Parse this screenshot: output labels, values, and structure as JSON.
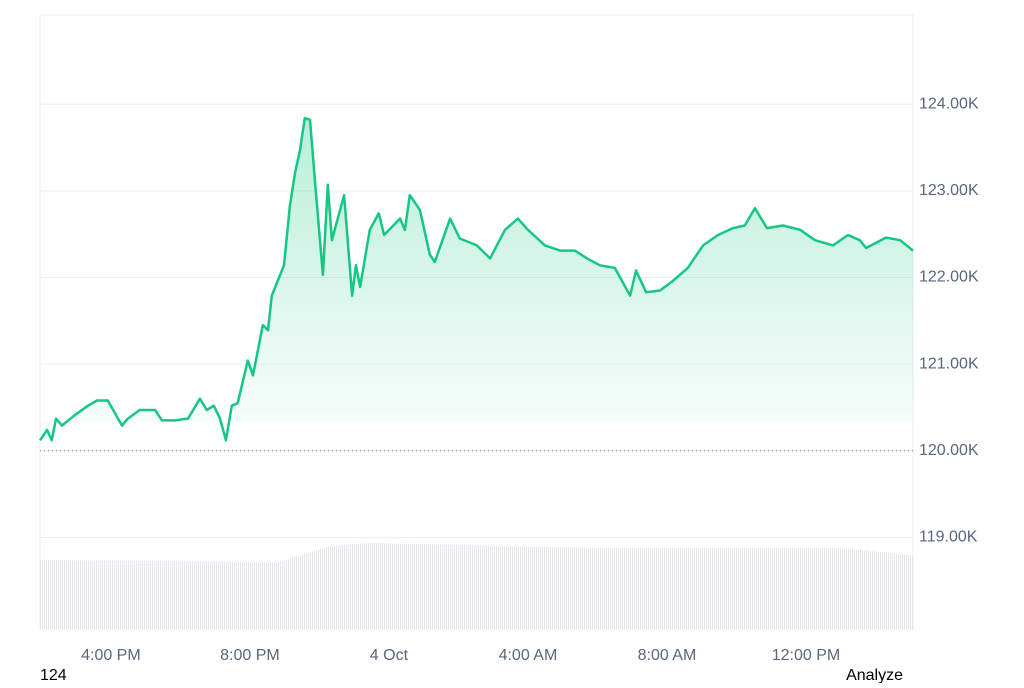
{
  "chart_data": {
    "type": "line",
    "x": [
      13.96,
      14.16,
      14.3,
      14.42,
      14.59,
      14.96,
      15.34,
      15.6,
      15.91,
      16.32,
      16.49,
      16.83,
      17.27,
      17.47,
      17.84,
      18.22,
      18.56,
      18.76,
      18.96,
      19.14,
      19.31,
      19.48,
      19.65,
      19.94,
      20.09,
      20.37,
      20.52,
      20.63,
      20.98,
      21.15,
      21.3,
      21.44,
      21.58,
      21.73,
      21.87,
      22.1,
      22.24,
      22.36,
      22.71,
      22.94,
      23.05,
      23.17,
      23.45,
      23.71,
      23.86,
      24.32,
      24.46,
      24.6,
      24.89,
      25.18,
      25.32,
      25.76,
      26.04,
      26.53,
      26.91,
      27.34,
      27.71,
      28.0,
      28.49,
      28.92,
      29.35,
      29.7,
      30.07,
      30.5,
      30.94,
      31.11,
      31.4,
      31.8,
      32.14,
      32.6,
      33.04,
      33.47,
      33.9,
      34.24,
      34.53,
      34.88,
      35.34,
      35.83,
      36.26,
      36.78,
      37.21,
      37.55,
      37.73,
      38.3,
      38.71,
      39.08
    ],
    "series": [
      {
        "color": "#16c784",
        "values": [
          120120,
          120240,
          120120,
          120370,
          120290,
          120410,
          120520,
          120580,
          120580,
          120290,
          120370,
          120470,
          120470,
          120350,
          120350,
          120370,
          120600,
          120470,
          120520,
          120370,
          120120,
          120520,
          120550,
          121040,
          120870,
          121450,
          121390,
          121790,
          122140,
          122830,
          123210,
          123470,
          123840,
          123820,
          123120,
          122030,
          123070,
          122430,
          122950,
          121790,
          122140,
          121890,
          122550,
          122740,
          122490,
          122680,
          122550,
          122950,
          122780,
          122260,
          122180,
          122680,
          122450,
          122370,
          122220,
          122550,
          122680,
          122550,
          122370,
          122310,
          122310,
          122220,
          122140,
          122110,
          121790,
          122080,
          121830,
          121850,
          121950,
          122110,
          122370,
          122490,
          122570,
          122600,
          122800,
          122570,
          122600,
          122550,
          122430,
          122370,
          122490,
          122430,
          122340,
          122460,
          122430,
          122310
        ]
      }
    ],
    "xlim": [
      13.96,
      39.08
    ],
    "xticks": [
      {
        "value": 16,
        "label": "4:00 PM"
      },
      {
        "value": 20,
        "label": "8:00 PM"
      },
      {
        "value": 24,
        "label": "4 Oct"
      },
      {
        "value": 28,
        "label": "4:00 AM"
      },
      {
        "value": 32,
        "label": "8:00 AM"
      },
      {
        "value": 36,
        "label": "12:00 PM"
      }
    ],
    "ylim": [
      117930,
      125030
    ],
    "yticks": [
      {
        "value": 119000,
        "label": "119.00K"
      },
      {
        "value": 120000,
        "label": "120.00K"
      },
      {
        "value": 121000,
        "label": "121.00K"
      },
      {
        "value": 122000,
        "label": "122.00K"
      },
      {
        "value": 123000,
        "label": "123.00K"
      },
      {
        "value": 124000,
        "label": "124.00K"
      }
    ],
    "reference_line": 120000,
    "grid": true
  },
  "footer": {
    "left": "124",
    "right": "Analyze"
  }
}
